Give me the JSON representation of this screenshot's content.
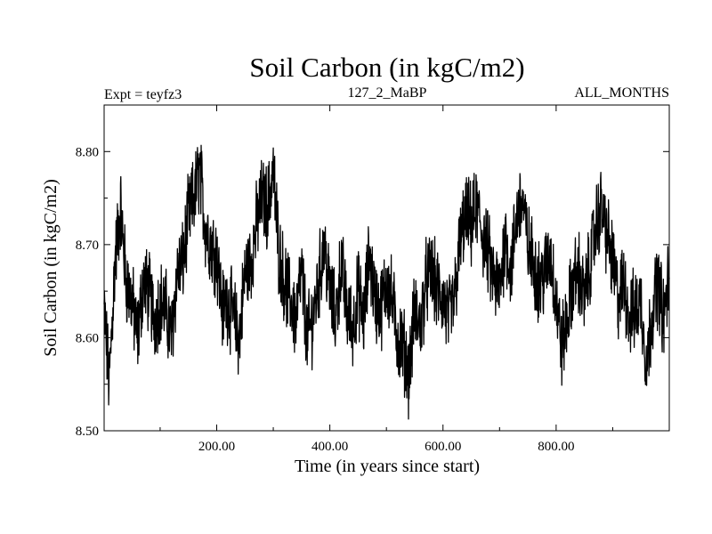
{
  "chart_data": {
    "type": "line",
    "title": "Soil Carbon (in kgC/m2)",
    "subtitle_left": "Expt = teyfz3",
    "subtitle_center": "127_2_MaBP",
    "subtitle_right": "ALL_MONTHS",
    "xlabel": "Time (in years since start)",
    "ylabel": "Soil Carbon (in kgC/m2)",
    "xlim": [
      1,
      1000
    ],
    "ylim": [
      8.5,
      8.85
    ],
    "xticks": [
      200,
      400,
      600,
      800
    ],
    "xtick_labels": [
      "200.00",
      "400.00",
      "600.00",
      "800.00"
    ],
    "yticks": [
      8.5,
      8.6,
      8.7,
      8.8
    ],
    "ytick_labels": [
      "8.50",
      "8.60",
      "8.70",
      "8.80"
    ],
    "grid": false,
    "series": [
      {
        "x": [
          1,
          10,
          20,
          30,
          40,
          50,
          60,
          70,
          80,
          90,
          100,
          110,
          120,
          130,
          140,
          150,
          160,
          170,
          180,
          190,
          200,
          210,
          220,
          230,
          240,
          250,
          260,
          270,
          280,
          290,
          300,
          310,
          320,
          330,
          340,
          350,
          360,
          370,
          380,
          390,
          400,
          410,
          420,
          430,
          440,
          450,
          460,
          470,
          480,
          490,
          500,
          510,
          520,
          530,
          540,
          550,
          560,
          570,
          580,
          590,
          600,
          610,
          620,
          630,
          640,
          650,
          660,
          670,
          680,
          690,
          700,
          710,
          720,
          730,
          740,
          750,
          760,
          770,
          780,
          790,
          800,
          810,
          820,
          830,
          840,
          850,
          860,
          870,
          880,
          890,
          900,
          910,
          920,
          930,
          940,
          950,
          960,
          970,
          980,
          990,
          1000
        ],
        "values": [
          8.63,
          8.55,
          8.68,
          8.74,
          8.66,
          8.64,
          8.6,
          8.66,
          8.65,
          8.62,
          8.64,
          8.63,
          8.6,
          8.67,
          8.68,
          8.73,
          8.75,
          8.78,
          8.72,
          8.7,
          8.69,
          8.63,
          8.64,
          8.62,
          8.6,
          8.67,
          8.68,
          8.72,
          8.75,
          8.74,
          8.78,
          8.69,
          8.66,
          8.64,
          8.62,
          8.67,
          8.6,
          8.62,
          8.66,
          8.7,
          8.65,
          8.62,
          8.68,
          8.63,
          8.61,
          8.65,
          8.62,
          8.69,
          8.64,
          8.63,
          8.66,
          8.64,
          8.6,
          8.59,
          8.56,
          8.63,
          8.61,
          8.66,
          8.67,
          8.65,
          8.64,
          8.62,
          8.64,
          8.7,
          8.73,
          8.72,
          8.74,
          8.71,
          8.69,
          8.66,
          8.65,
          8.71,
          8.67,
          8.73,
          8.75,
          8.7,
          8.68,
          8.66,
          8.67,
          8.69,
          8.64,
          8.59,
          8.62,
          8.66,
          8.67,
          8.64,
          8.68,
          8.72,
          8.74,
          8.71,
          8.68,
          8.64,
          8.66,
          8.62,
          8.63,
          8.64,
          8.57,
          8.63,
          8.66,
          8.62,
          8.67
        ]
      }
    ]
  }
}
